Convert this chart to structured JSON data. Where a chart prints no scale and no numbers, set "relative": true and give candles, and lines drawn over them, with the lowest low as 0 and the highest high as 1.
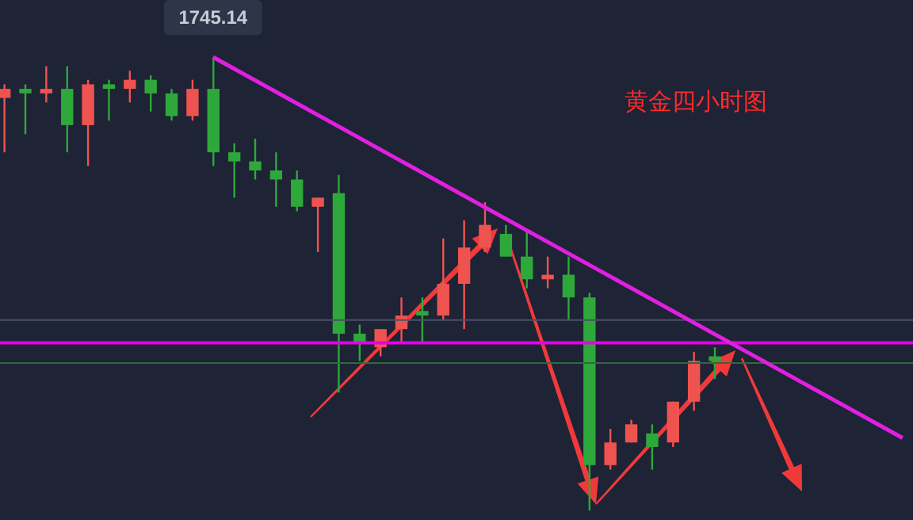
{
  "chart_data": {
    "type": "candlestick",
    "title": "黄金四小时图",
    "relative": true,
    "annotations": [
      {
        "text": "1745.14",
        "y": 1
      }
    ],
    "categories": [
      null,
      null,
      null,
      null,
      null,
      null,
      null,
      null,
      null,
      null,
      null,
      null,
      null,
      null,
      null,
      null,
      null,
      null,
      null,
      null,
      null,
      null,
      null,
      null,
      null,
      null,
      null,
      null,
      null,
      null,
      null,
      null,
      null,
      null,
      null,
      null,
      null,
      null,
      null,
      null,
      null,
      null,
      null,
      null
    ],
    "ohlc": [
      [
        0.91,
        0.94,
        0.79,
        0.93
      ],
      [
        0.93,
        0.94,
        0.83,
        0.92
      ],
      [
        0.92,
        0.98,
        0.9,
        0.93
      ],
      [
        0.93,
        0.98,
        0.79,
        0.85
      ],
      [
        0.85,
        0.95,
        0.76,
        0.94
      ],
      [
        0.94,
        0.95,
        0.86,
        0.93
      ],
      [
        0.93,
        0.97,
        0.9,
        0.95
      ],
      [
        0.95,
        0.96,
        0.88,
        0.92
      ],
      [
        0.92,
        0.93,
        0.86,
        0.87
      ],
      [
        0.87,
        0.95,
        0.86,
        0.93
      ],
      [
        0.93,
        1,
        0.76,
        0.79
      ],
      [
        0.79,
        0.81,
        0.69,
        0.77
      ],
      [
        0.77,
        0.82,
        0.73,
        0.75
      ],
      [
        0.75,
        0.79,
        0.67,
        0.73
      ],
      [
        0.73,
        0.75,
        0.66,
        0.67
      ],
      [
        0.67,
        0.69,
        0.57,
        0.69
      ],
      [
        0.7,
        0.74,
        0.26,
        0.39
      ],
      [
        0.39,
        0.41,
        0.33,
        0.37
      ],
      [
        0.36,
        0.4,
        0.34,
        0.4
      ],
      [
        0.4,
        0.47,
        0.37,
        0.43
      ],
      [
        0.44,
        0.47,
        0.37,
        0.43
      ],
      [
        0.43,
        0.6,
        0.42,
        0.5
      ],
      [
        0.5,
        0.64,
        0.4,
        0.58
      ],
      [
        0.58,
        0.68,
        0.57,
        0.63
      ],
      [
        0.61,
        0.63,
        0.56,
        0.56
      ],
      [
        0.56,
        0.62,
        0.49,
        0.51
      ],
      [
        0.51,
        0.56,
        0.49,
        0.52
      ],
      [
        0.52,
        0.56,
        0.42,
        0.47
      ],
      [
        0.47,
        0.48,
        0,
        0.1
      ],
      [
        0.1,
        0.18,
        0.09,
        0.15
      ],
      [
        0.15,
        0.2,
        0.15,
        0.19
      ],
      [
        0.17,
        0.19,
        0.09,
        0.14
      ],
      [
        0.15,
        0.24,
        0.14,
        0.24
      ],
      [
        0.24,
        0.35,
        0.22,
        0.33
      ],
      [
        0.34,
        0.36,
        0.29,
        0.33
      ],
      null,
      null,
      null,
      null,
      null,
      null,
      null,
      null,
      null
    ],
    "colors": [
      "#ef5350",
      "#2ea83a",
      "#ef5350",
      "#2ea83a",
      "#ef5350",
      "#2ea83a",
      "#ef5350",
      "#2ea83a",
      "#2ea83a",
      "#ef5350",
      "#2ea83a",
      "#2ea83a",
      "#2ea83a",
      "#2ea83a",
      "#2ea83a",
      "#ef5350",
      "#2ea83a",
      "#2ea83a",
      "#ef5350",
      "#ef5350",
      "#2ea83a",
      "#ef5350",
      "#ef5350",
      "#ef5350",
      "#2ea83a",
      "#2ea83a",
      "#ef5350",
      "#2ea83a",
      "#2ea83a",
      "#ef5350",
      "#ef5350",
      "#2ea83a",
      "#ef5350",
      "#ef5350",
      "#2ea83a",
      null,
      null,
      null,
      null,
      null,
      null,
      null,
      null,
      null
    ],
    "series": [
      {
        "type": "line",
        "color": "#e020e0",
        "values": [
          null,
          null,
          null,
          null,
          null,
          null,
          null,
          null,
          null,
          null,
          1,
          null,
          null,
          null,
          null,
          null,
          null,
          null,
          null,
          null,
          null,
          null,
          null,
          null,
          null,
          null,
          null,
          null,
          null,
          null,
          null,
          null,
          null,
          null,
          null,
          null,
          null,
          null,
          null,
          null,
          null,
          null,
          null,
          0.16
        ]
      }
    ],
    "ref_lines": [
      {
        "axis": "y",
        "value": 0.42,
        "color": "#4a5068"
      },
      {
        "axis": "y",
        "value": 0.37,
        "color": "#e600e6"
      },
      {
        "axis": "y",
        "value": 0.325,
        "color": "#2e6a3e"
      }
    ]
  }
}
